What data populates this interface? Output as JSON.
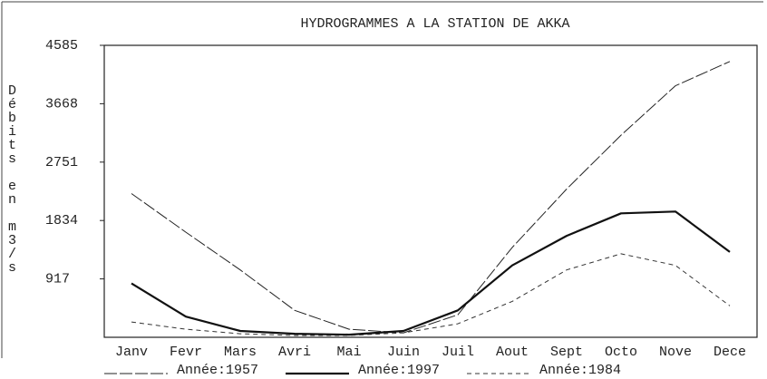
{
  "chart_data": {
    "type": "line",
    "title": "HYDROGRAMMES A LA STATION DE AKKA",
    "y_label": "Débits en m3/s",
    "categories": [
      "Janv",
      "Fevr",
      "Mars",
      "Avri",
      "Mai",
      "Juin",
      "Juil",
      "Aout",
      "Sept",
      "Octo",
      "Nove",
      "Dece"
    ],
    "series": [
      {
        "name": "Année:1957",
        "color": "#222222",
        "style": "long-dash",
        "width": 1,
        "values": [
          2257,
          1650,
          1058,
          423,
          127,
          70,
          353,
          1411,
          2328,
          3174,
          3950,
          4331
        ]
      },
      {
        "name": "Année:1997",
        "color": "#111111",
        "style": "solid",
        "width": 2.2,
        "values": [
          846,
          324,
          99,
          56,
          42,
          99,
          423,
          1129,
          1594,
          1947,
          1975,
          1340
        ]
      },
      {
        "name": "Année:1984",
        "color": "#333333",
        "style": "short-dash",
        "width": 1,
        "values": [
          240,
          127,
          56,
          28,
          28,
          70,
          212,
          564,
          1058,
          1312,
          1129,
          494
        ]
      }
    ],
    "ylim": [
      0,
      4585
    ],
    "yticks": [
      917,
      1834,
      2751,
      3668,
      4585
    ],
    "grid": false
  }
}
